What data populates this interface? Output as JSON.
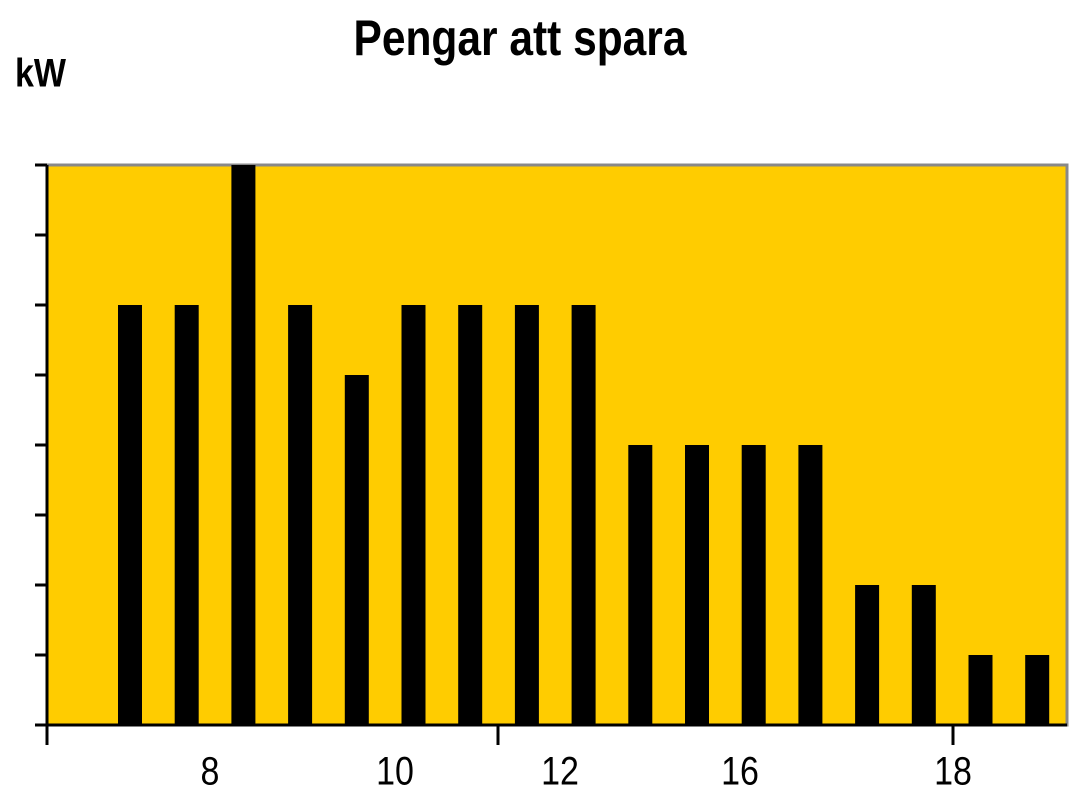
{
  "chart_data": {
    "type": "bar",
    "title": "Pengar att spara",
    "y_label": "kW",
    "categories": [
      null,
      null,
      null,
      null,
      null,
      null,
      null,
      null,
      null,
      null,
      null,
      null,
      null,
      null,
      null,
      null,
      null
    ],
    "values": [
      6,
      6,
      8,
      6,
      5,
      6,
      6,
      6,
      6,
      4,
      4,
      4,
      4,
      2,
      2,
      1,
      1
    ],
    "x_labels": [
      "8",
      "10",
      "12",
      "16",
      "18"
    ],
    "color": "#000000",
    "background": "#ffcc00",
    "ylim": [
      0,
      8
    ],
    "yticks": [
      0,
      1,
      2,
      3,
      4,
      5,
      6,
      7,
      8
    ]
  }
}
